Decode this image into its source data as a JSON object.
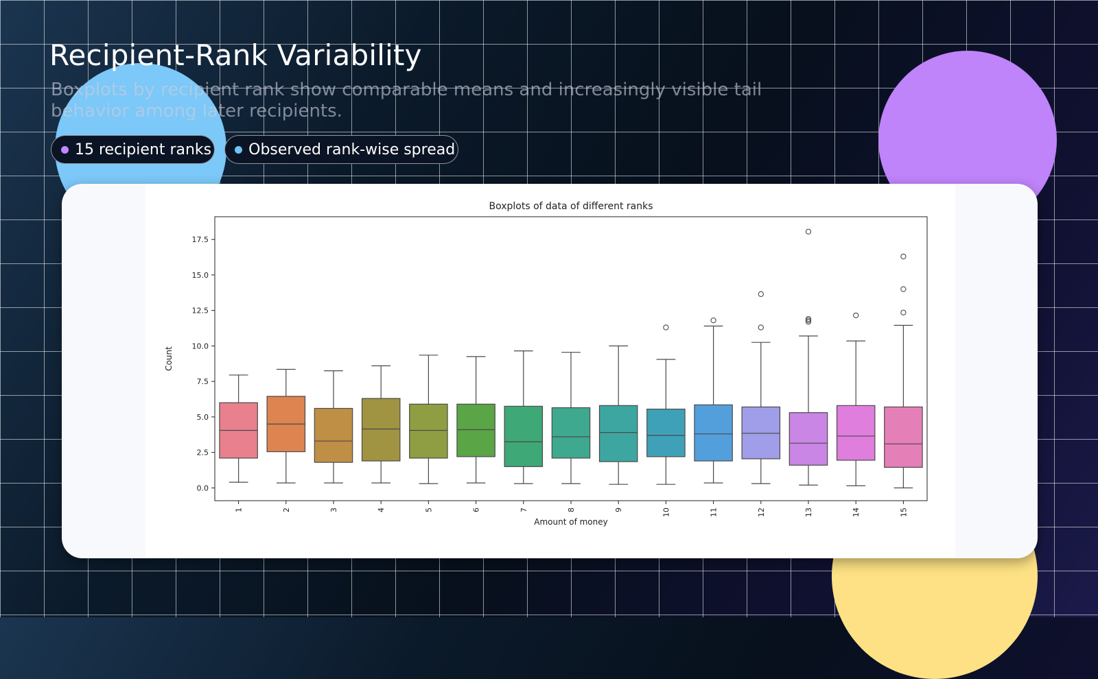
{
  "header": {
    "title": "Recipient-Rank Variability",
    "subtitle": "Boxplots by recipient rank show comparable means and increasingly visible tail behavior among later recipients.",
    "chips": [
      {
        "label": "15 recipient ranks",
        "dot_color": "#c387fb"
      },
      {
        "label": "Observed rank-wise spread",
        "dot_color": "#6fc3f7"
      }
    ]
  },
  "chart_data": {
    "type": "boxplot",
    "title": "Boxplots of data of different ranks",
    "xlabel": "Amount of money",
    "ylabel": "Count",
    "ylim": [
      -0.9,
      19.1
    ],
    "yticks": [
      0.0,
      2.5,
      5.0,
      7.5,
      10.0,
      12.5,
      15.0,
      17.5
    ],
    "categories": [
      "1",
      "2",
      "3",
      "4",
      "5",
      "6",
      "7",
      "8",
      "9",
      "10",
      "11",
      "12",
      "13",
      "14",
      "15"
    ],
    "boxes": [
      {
        "low": 0.4,
        "q1": 2.1,
        "median": 4.05,
        "q3": 6.0,
        "high": 7.95,
        "outliers": [],
        "color": "#e8808e"
      },
      {
        "low": 0.35,
        "q1": 2.55,
        "median": 4.5,
        "q3": 6.45,
        "high": 8.35,
        "outliers": [],
        "color": "#dd8450"
      },
      {
        "low": 0.35,
        "q1": 1.8,
        "median": 3.3,
        "q3": 5.6,
        "high": 8.25,
        "outliers": [],
        "color": "#bf8f45"
      },
      {
        "low": 0.35,
        "q1": 1.9,
        "median": 4.15,
        "q3": 6.3,
        "high": 8.6,
        "outliers": [],
        "color": "#a09442"
      },
      {
        "low": 0.3,
        "q1": 2.1,
        "median": 4.05,
        "q3": 5.9,
        "high": 9.35,
        "outliers": [],
        "color": "#8f9e42"
      },
      {
        "low": 0.35,
        "q1": 2.2,
        "median": 4.1,
        "q3": 5.9,
        "high": 9.25,
        "outliers": [],
        "color": "#5aa546"
      },
      {
        "low": 0.3,
        "q1": 1.5,
        "median": 3.25,
        "q3": 5.75,
        "high": 9.65,
        "outliers": [],
        "color": "#3ea877"
      },
      {
        "low": 0.3,
        "q1": 2.1,
        "median": 3.6,
        "q3": 5.65,
        "high": 9.55,
        "outliers": [],
        "color": "#3ea98f"
      },
      {
        "low": 0.25,
        "q1": 1.85,
        "median": 3.9,
        "q3": 5.8,
        "high": 10.0,
        "outliers": [],
        "color": "#3da6a0"
      },
      {
        "low": 0.25,
        "q1": 2.2,
        "median": 3.7,
        "q3": 5.55,
        "high": 9.05,
        "outliers": [
          11.3
        ],
        "color": "#3fa1b8"
      },
      {
        "low": 0.35,
        "q1": 1.9,
        "median": 3.8,
        "q3": 5.85,
        "high": 11.4,
        "outliers": [
          11.8
        ],
        "color": "#539fdc"
      },
      {
        "low": 0.3,
        "q1": 2.05,
        "median": 3.85,
        "q3": 5.7,
        "high": 10.25,
        "outliers": [
          11.3,
          13.65
        ],
        "color": "#a09ee8"
      },
      {
        "low": 0.2,
        "q1": 1.6,
        "median": 3.15,
        "q3": 5.3,
        "high": 10.7,
        "outliers": [
          11.7,
          11.8,
          11.9,
          18.05
        ],
        "color": "#c986e4"
      },
      {
        "low": 0.15,
        "q1": 1.95,
        "median": 3.65,
        "q3": 5.8,
        "high": 10.35,
        "outliers": [
          12.15
        ],
        "color": "#e07ede"
      },
      {
        "low": 0.0,
        "q1": 1.45,
        "median": 3.1,
        "q3": 5.7,
        "high": 11.45,
        "outliers": [
          12.35,
          14.0,
          16.3
        ],
        "color": "#e57fb8"
      }
    ],
    "grid": false,
    "legend": "none"
  }
}
